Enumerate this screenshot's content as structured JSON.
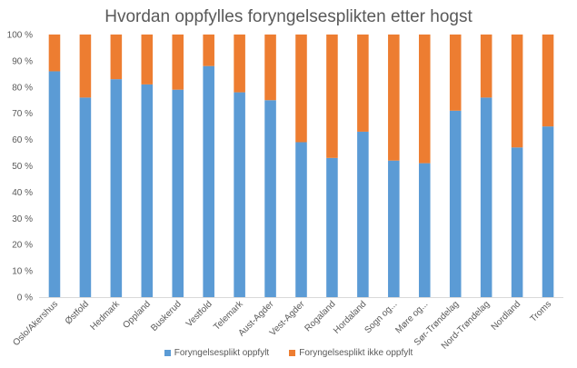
{
  "chart_data": {
    "type": "bar",
    "stacked": true,
    "percent": true,
    "title": "Hvordan oppfylles foryngelsesplikten etter hogst",
    "categories": [
      "Oslo/Akershus",
      "Østfold",
      "Hedmark",
      "Oppland",
      "Buskerud",
      "Vestfold",
      "Telemark",
      "Aust-Agder",
      "Vest-Agder",
      "Rogaland",
      "Hordaland",
      "Sogn og...",
      "Møre og...",
      "Sør-Trøndelag",
      "Nord-Trøndelag",
      "Nordland",
      "Troms"
    ],
    "series": [
      {
        "name": "Foryngelsesplikt oppfylt",
        "color": "#5B9BD5",
        "values": [
          86,
          76,
          83,
          81,
          79,
          88,
          78,
          75,
          59,
          53,
          63,
          52,
          51,
          71,
          76,
          57,
          65
        ]
      },
      {
        "name": "Foryngelsesplikt ikke oppfylt",
        "color": "#ED7D31",
        "values": [
          14,
          24,
          17,
          19,
          21,
          12,
          22,
          25,
          41,
          47,
          37,
          48,
          49,
          29,
          24,
          43,
          35
        ]
      }
    ],
    "ylim": [
      0,
      100
    ],
    "yticks": [
      "0 %",
      "10 %",
      "20 %",
      "30 %",
      "40 %",
      "50 %",
      "60 %",
      "70 %",
      "80 %",
      "90 %",
      "100 %"
    ],
    "grid": false,
    "legend_position": "bottom"
  }
}
